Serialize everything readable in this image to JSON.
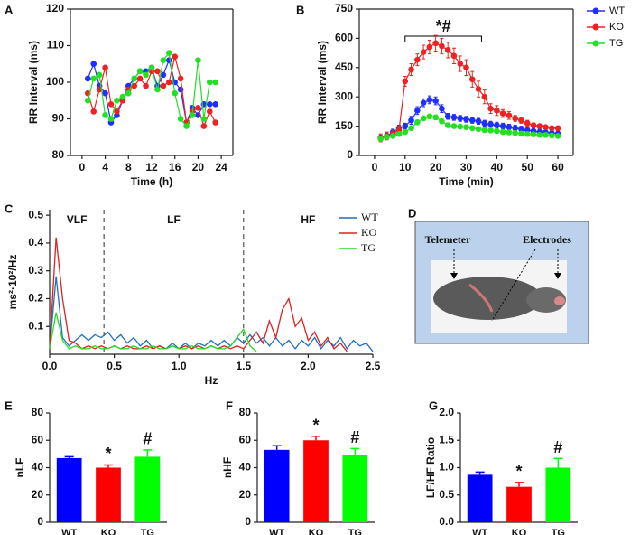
{
  "chart_data": [
    {
      "type": "line",
      "panel": "A",
      "ylabel": "RR Interval (ms)",
      "xlabel": "Time (h)",
      "markers": true,
      "xlim": [
        -2,
        26
      ],
      "xticks": [
        0,
        4,
        8,
        12,
        16,
        20,
        24
      ],
      "ylim": [
        80,
        120
      ],
      "yticks": [
        80,
        90,
        100,
        110,
        120
      ],
      "x": [
        1,
        2,
        3,
        4,
        5,
        6,
        7,
        8,
        9,
        10,
        11,
        12,
        13,
        14,
        15,
        16,
        17,
        18,
        19,
        20,
        21,
        22,
        23
      ],
      "series": [
        {
          "name": "WT",
          "color": "#1f2fff",
          "values": [
            101,
            105,
            99,
            97,
            89,
            91,
            95,
            99,
            101,
            103,
            103,
            104,
            99,
            102,
            106,
            100,
            98,
            89,
            93,
            91,
            94,
            94,
            94
          ]
        },
        {
          "name": "KO",
          "color": "#ee2222",
          "values": [
            97,
            92,
            98,
            104,
            94,
            92,
            95,
            98,
            99,
            101,
            99,
            103,
            103,
            99,
            100,
            107,
            101,
            89,
            92,
            93,
            88,
            92,
            89
          ]
        },
        {
          "name": "TG",
          "color": "#22e022",
          "values": [
            95,
            101,
            102,
            91,
            90,
            95,
            96,
            97,
            101,
            103,
            102,
            104,
            98,
            106,
            108,
            97,
            90,
            88,
            91,
            106,
            90,
            100,
            100
          ]
        }
      ]
    },
    {
      "type": "line",
      "panel": "B",
      "ylabel": "RR Interval (ms)",
      "xlabel": "Time (min)",
      "markers": true,
      "legend": "outside-right",
      "xlim": [
        -5,
        65
      ],
      "xticks": [
        0,
        10,
        20,
        30,
        40,
        50,
        60
      ],
      "ylim": [
        0,
        750
      ],
      "yticks": [
        0,
        150,
        300,
        450,
        600,
        750
      ],
      "annotation": {
        "text": "*#",
        "x": [
          10,
          35
        ]
      },
      "x": [
        2,
        4,
        6,
        8,
        10,
        12,
        14,
        16,
        18,
        20,
        22,
        24,
        26,
        28,
        30,
        32,
        34,
        36,
        38,
        40,
        42,
        44,
        46,
        48,
        50,
        52,
        54,
        56,
        58,
        60
      ],
      "series": [
        {
          "name": "WT",
          "color": "#1f2fff",
          "values": [
            90,
            100,
            120,
            140,
            150,
            180,
            230,
            270,
            285,
            280,
            240,
            200,
            195,
            190,
            185,
            180,
            175,
            165,
            160,
            155,
            150,
            145,
            140,
            135,
            130,
            125,
            120,
            118,
            115,
            112
          ],
          "errors": [
            15,
            15,
            15,
            15,
            15,
            20,
            20,
            20,
            20,
            20,
            20,
            15,
            15,
            15,
            15,
            15,
            15,
            15,
            15,
            15,
            15,
            15,
            15,
            15,
            15,
            15,
            15,
            15,
            15,
            15
          ]
        },
        {
          "name": "KO",
          "color": "#ee2222",
          "values": [
            90,
            100,
            110,
            130,
            380,
            440,
            490,
            530,
            555,
            575,
            560,
            540,
            510,
            470,
            450,
            390,
            340,
            300,
            240,
            230,
            215,
            205,
            190,
            180,
            165,
            155,
            150,
            145,
            140,
            140
          ],
          "errors": [
            20,
            20,
            20,
            20,
            25,
            30,
            30,
            35,
            35,
            40,
            40,
            40,
            40,
            40,
            40,
            40,
            40,
            35,
            25,
            25,
            20,
            20,
            15,
            15,
            15,
            10,
            10,
            10,
            10,
            10
          ]
        },
        {
          "name": "TG",
          "color": "#22e022",
          "values": [
            85,
            95,
            100,
            110,
            120,
            140,
            170,
            190,
            200,
            195,
            175,
            155,
            150,
            148,
            145,
            140,
            135,
            130,
            128,
            125,
            120,
            118,
            115,
            112,
            110,
            108,
            105,
            105,
            102,
            100
          ],
          "errors": [
            10,
            10,
            10,
            10,
            10,
            10,
            12,
            12,
            12,
            12,
            12,
            10,
            10,
            10,
            10,
            10,
            10,
            10,
            10,
            10,
            10,
            10,
            10,
            10,
            10,
            10,
            10,
            10,
            10,
            10
          ]
        }
      ]
    },
    {
      "type": "line",
      "panel": "C",
      "ylabel": "ms²·10²/Hz",
      "xlabel": "Hz",
      "markers": false,
      "legend": "upper-right",
      "bands": [
        "VLF",
        "LF",
        "HF"
      ],
      "vlines": [
        0.42,
        1.5
      ],
      "xlim": [
        0,
        2.5
      ],
      "xticks": [
        {
          "value": 0,
          "label": "0.0"
        },
        0.5,
        {
          "value": 1,
          "label": "1.0"
        },
        1.5,
        {
          "value": 2,
          "label": "2.0"
        },
        2.5
      ],
      "ylim": [
        0,
        0.52
      ],
      "yticks": [
        0.1,
        0.2,
        0.3,
        0.4,
        0.5
      ],
      "x": [
        0,
        0.05,
        0.1,
        0.15,
        0.2,
        0.25,
        0.3,
        0.35,
        0.4,
        0.45,
        0.5,
        0.55,
        0.6,
        0.65,
        0.7,
        0.75,
        0.8,
        0.85,
        0.9,
        0.95,
        1,
        1.05,
        1.1,
        1.15,
        1.2,
        1.25,
        1.3,
        1.35,
        1.4,
        1.45,
        1.5,
        1.55,
        1.6,
        1.65,
        1.7,
        1.75,
        1.8,
        1.85,
        1.9,
        1.95,
        2,
        2.05,
        2.1,
        2.15,
        2.2,
        2.25,
        2.3,
        2.35,
        2.4,
        2.45,
        2.5
      ],
      "series": [
        {
          "name": "WT",
          "color": "#1f6fbf",
          "values": [
            0.02,
            0.28,
            0.06,
            0.03,
            0.05,
            0.07,
            0.05,
            0.07,
            0.06,
            0.08,
            0.05,
            0.07,
            0.04,
            0.06,
            0.03,
            0.05,
            0.02,
            0.03,
            0.02,
            0.04,
            0.02,
            0.04,
            0.02,
            0.04,
            0.03,
            0.05,
            0.03,
            0.05,
            0.03,
            0.06,
            0.04,
            0.07,
            0.04,
            0.06,
            0.03,
            0.06,
            0.03,
            0.05,
            0.02,
            0.05,
            0.03,
            0.06,
            0.02,
            0.05,
            0.03,
            0.06,
            0.02,
            0.05,
            0.03,
            0.04,
            0.01
          ]
        },
        {
          "name": "KO",
          "color": "#e02020",
          "values": [
            0.02,
            0.42,
            0.2,
            0.05,
            0.04,
            0.02,
            0.03,
            0.02,
            0.03,
            0.02,
            0.03,
            0.02,
            0.03,
            0.02,
            0.02,
            0.03,
            0.02,
            0.03,
            0.02,
            0.03,
            0.02,
            0.03,
            0.02,
            0.03,
            0.02,
            0.03,
            0.02,
            0.03,
            0.02,
            0.03,
            0.02,
            0.05,
            0.08,
            0.04,
            0.12,
            0.06,
            0.16,
            0.2,
            0.1,
            0.13,
            0.05,
            0.08,
            0.03,
            0.06,
            0.02,
            0.04,
            0.01,
            null,
            null,
            null,
            null
          ]
        },
        {
          "name": "TG",
          "color": "#22dd22",
          "values": [
            0.02,
            0.15,
            0.05,
            0.02,
            0.03,
            0.02,
            0.02,
            0.03,
            0.02,
            0.02,
            0.03,
            0.02,
            0.02,
            0.03,
            0.02,
            0.02,
            0.03,
            0.02,
            0.02,
            0.03,
            0.02,
            0.02,
            0.03,
            0.02,
            0.02,
            0.03,
            0.02,
            0.02,
            0.03,
            0.06,
            0.09,
            0.03,
            0.01,
            null,
            null,
            null,
            null,
            null,
            null,
            null,
            null,
            null,
            null,
            null,
            null,
            null,
            null,
            null,
            null,
            null,
            null
          ]
        }
      ]
    },
    {
      "type": "image",
      "panel": "D",
      "labels": [
        "Telemeter",
        "Electrodes"
      ]
    },
    {
      "type": "bar",
      "panel": "E",
      "ylabel": "nLF",
      "categories": [
        "WT",
        "KO",
        "TG"
      ],
      "colors": [
        "#0000ff",
        "#ff0000",
        "#00ff00"
      ],
      "values": [
        47,
        40,
        48
      ],
      "errors": [
        1,
        2,
        5
      ],
      "annotations": [
        {
          "index": 1,
          "text": "*"
        },
        {
          "index": 2,
          "text": "#"
        }
      ],
      "ylim": [
        0,
        80
      ],
      "yticks": [
        0,
        20,
        40,
        60,
        80
      ]
    },
    {
      "type": "bar",
      "panel": "F",
      "ylabel": "nHF",
      "categories": [
        "WT",
        "KO",
        "TG"
      ],
      "colors": [
        "#0000ff",
        "#ff0000",
        "#00ff00"
      ],
      "values": [
        53,
        60,
        49
      ],
      "errors": [
        3,
        3,
        5
      ],
      "annotations": [
        {
          "index": 1,
          "text": "*"
        },
        {
          "index": 2,
          "text": "#"
        }
      ],
      "ylim": [
        0,
        80
      ],
      "yticks": [
        0,
        20,
        40,
        60,
        80
      ]
    },
    {
      "type": "bar",
      "panel": "G",
      "ylabel": "LF/HF Ratio",
      "categories": [
        "WT",
        "KO",
        "TG"
      ],
      "colors": [
        "#0000ff",
        "#ff0000",
        "#00ff00"
      ],
      "values": [
        0.87,
        0.65,
        1.0
      ],
      "errors": [
        0.05,
        0.08,
        0.17
      ],
      "annotations": [
        {
          "index": 1,
          "text": "*"
        },
        {
          "index": 2,
          "text": "#"
        }
      ],
      "ylim": [
        0,
        2
      ],
      "yticks": [
        {
          "value": 0,
          "label": "0.0"
        },
        0.5,
        {
          "value": 1,
          "label": "1.0"
        },
        1.5,
        {
          "value": 2,
          "label": "2.0"
        }
      ]
    }
  ]
}
